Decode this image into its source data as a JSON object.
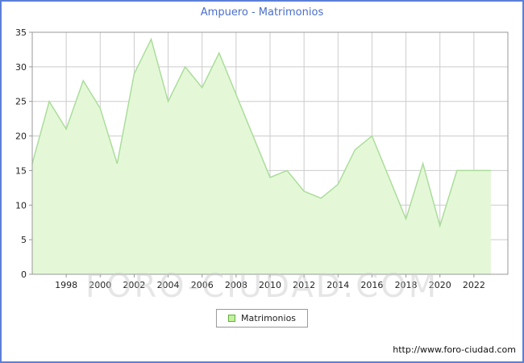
{
  "title": "Ampuero - Matrimonios",
  "legend": {
    "label": "Matrimonios"
  },
  "watermark": "FORO-CIUDAD.COM",
  "footer_url": "http://www.foro-ciudad.com",
  "colors": {
    "frame_border": "#5c7fd6",
    "title_text": "#4a6fc8",
    "grid": "#cccccc",
    "axis": "#999999",
    "tick_text": "#222222",
    "area_fill": "#e4f8d8",
    "area_stroke": "#abdd9a",
    "legend_swatch_fill": "#c6f0a0",
    "legend_swatch_border": "#5bb335",
    "watermark_text": "#c9c9c9"
  },
  "chart_data": {
    "type": "area",
    "title": "Ampuero - Matrimonios",
    "xlabel": "",
    "ylabel": "",
    "x": [
      1996,
      1997,
      1998,
      1999,
      2000,
      2001,
      2002,
      2003,
      2004,
      2005,
      2006,
      2007,
      2008,
      2009,
      2010,
      2011,
      2012,
      2013,
      2014,
      2015,
      2016,
      2017,
      2018,
      2019,
      2020,
      2021,
      2022,
      2023
    ],
    "series": [
      {
        "name": "Matrimonios",
        "values": [
          16,
          25,
          21,
          28,
          24,
          16,
          29,
          34,
          25,
          30,
          27,
          32,
          26,
          20,
          14,
          15,
          12,
          11,
          13,
          18,
          20,
          14,
          8,
          16,
          7,
          15,
          15,
          15
        ]
      }
    ],
    "xlim": [
      1996,
      2024
    ],
    "ylim": [
      0,
      35
    ],
    "xticks": [
      1998,
      2000,
      2002,
      2004,
      2006,
      2008,
      2010,
      2012,
      2014,
      2016,
      2018,
      2020,
      2022
    ],
    "yticks": [
      0,
      5,
      10,
      15,
      20,
      25,
      30,
      35
    ],
    "grid": true,
    "legend_position": "bottom"
  }
}
